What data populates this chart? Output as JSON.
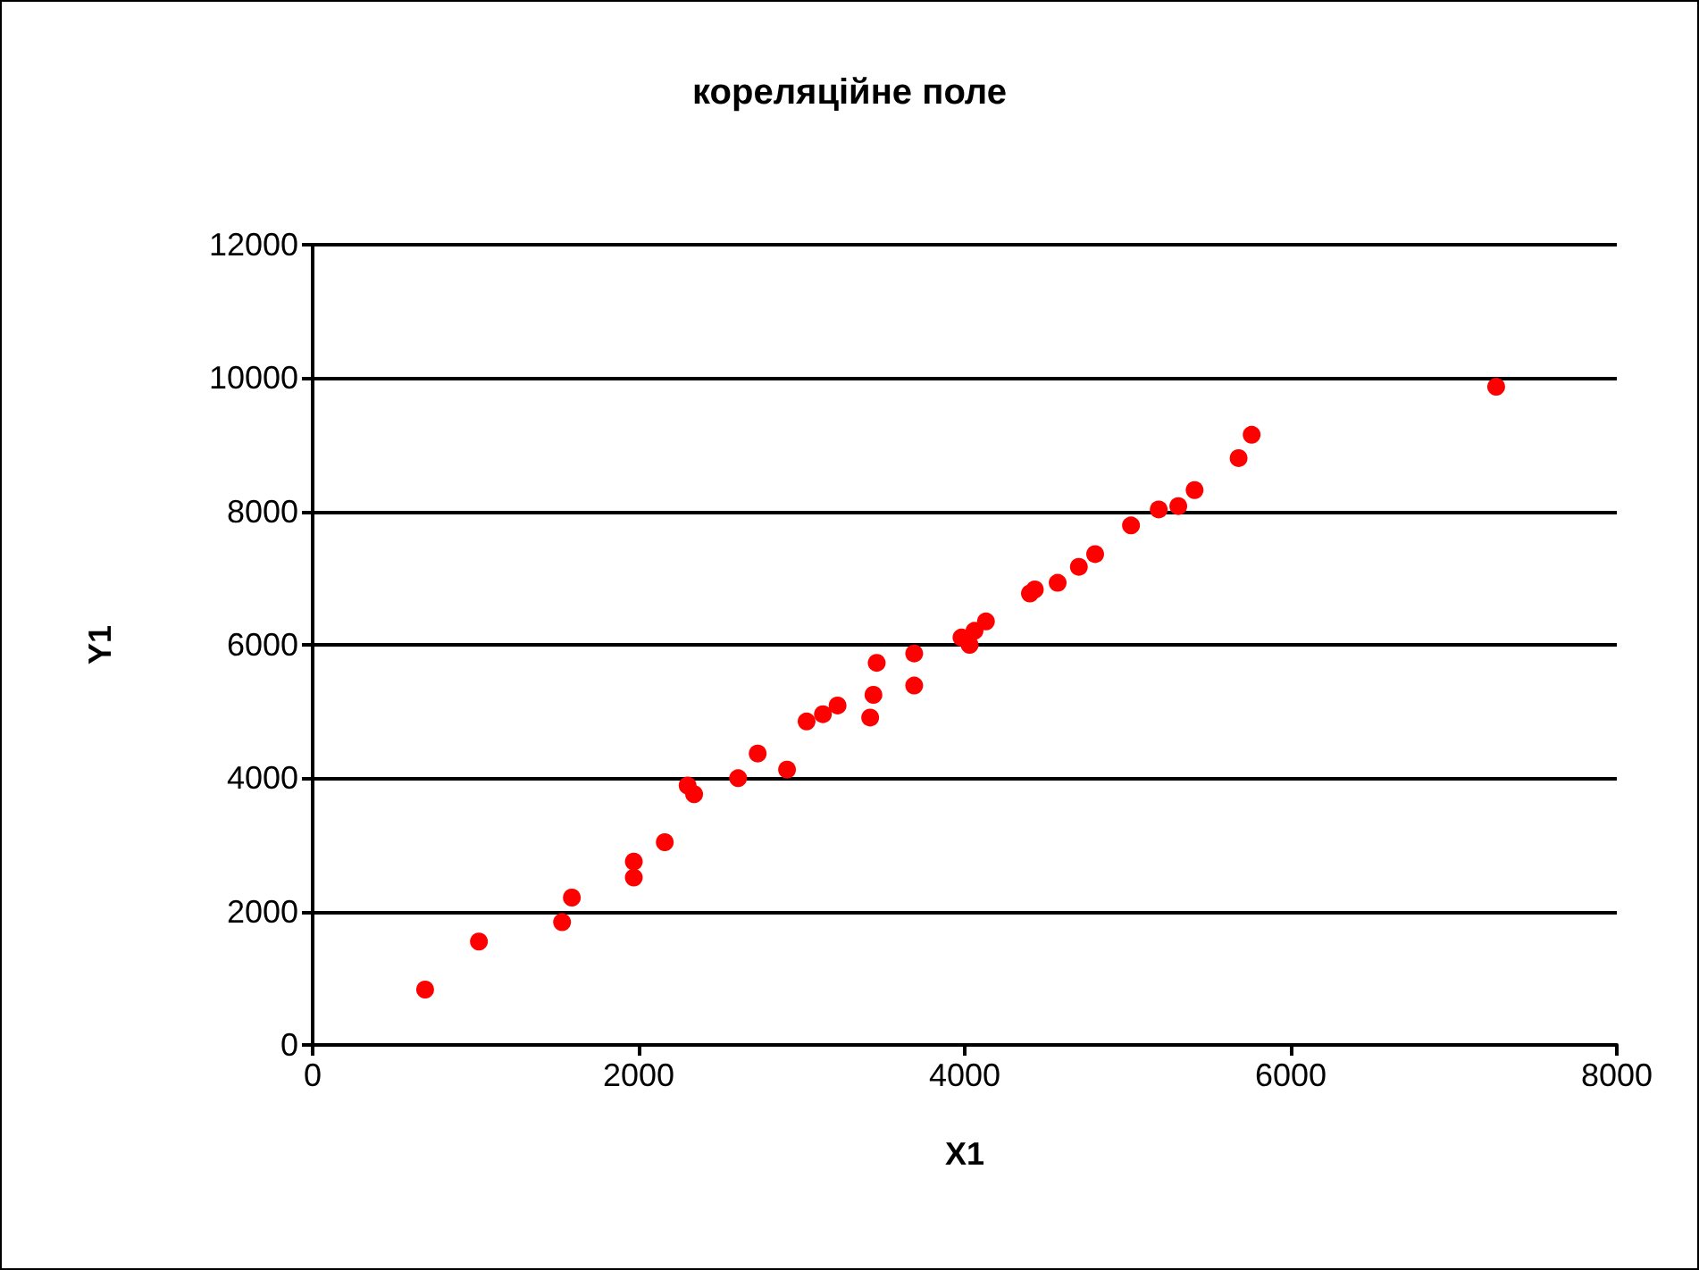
{
  "chart_data": {
    "type": "scatter",
    "title": "кореляційне поле",
    "xlabel": "X1",
    "ylabel": "Y1",
    "x": [
      690,
      1020,
      1530,
      1590,
      1970,
      1970,
      2160,
      2300,
      2340,
      2610,
      2730,
      2910,
      3030,
      3130,
      3220,
      3420,
      3440,
      3460,
      3690,
      3690,
      3980,
      4030,
      4060,
      4130,
      4400,
      4430,
      4570,
      4700,
      4800,
      5020,
      5190,
      5310,
      5410,
      5680,
      5760,
      7260
    ],
    "values": [
      830,
      1550,
      1840,
      2210,
      2510,
      2750,
      3040,
      3890,
      3760,
      4000,
      4370,
      4130,
      4850,
      4960,
      5090,
      4910,
      5250,
      5730,
      5870,
      5390,
      6110,
      6000,
      6210,
      6350,
      6770,
      6830,
      6930,
      7170,
      7360,
      7790,
      8030,
      8080,
      8320,
      8800,
      9150,
      9870
    ],
    "color": "#ff0000",
    "marker": "circle",
    "xlim": [
      0,
      8000
    ],
    "xticks": [
      0,
      2000,
      4000,
      6000,
      8000
    ],
    "ylim": [
      0,
      12000
    ],
    "yticks": [
      0,
      2000,
      4000,
      6000,
      8000,
      10000,
      12000
    ],
    "grid": "y"
  }
}
